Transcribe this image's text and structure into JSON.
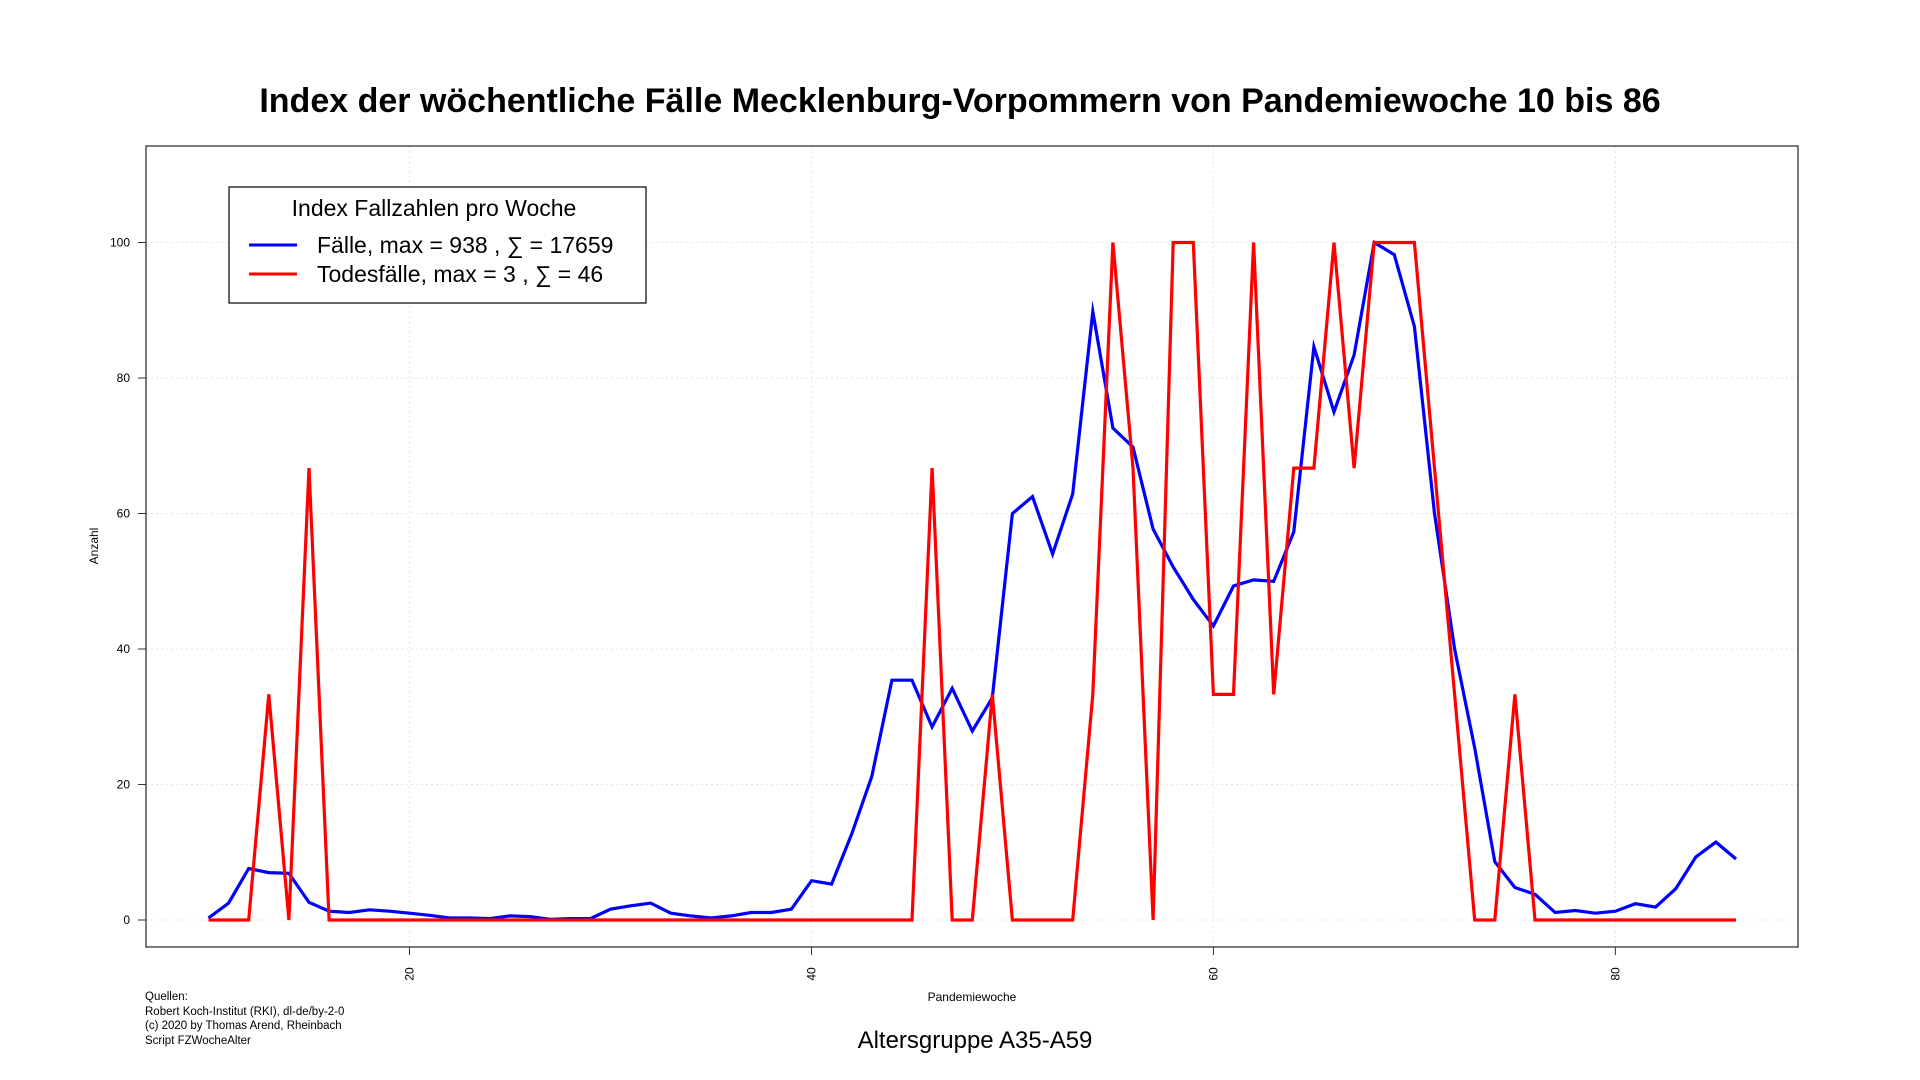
{
  "chart_data": {
    "type": "line",
    "title": "Index der wöchentliche Fälle Mecklenburg-Vorpommern von Pandemiewoche 10 bis 86",
    "xlabel": "Pandemiewoche",
    "ylabel": "Anzahl",
    "subtitle": "Altersgruppe A35-A59",
    "xlim": [
      10,
      86
    ],
    "ylim": [
      0,
      100
    ],
    "x_ticks": [
      "20",
      "40",
      "60",
      "80"
    ],
    "y_ticks": [
      "0",
      "20",
      "40",
      "60",
      "80",
      "100"
    ],
    "grid": true,
    "legend_position": "top-left",
    "legend": {
      "title": "Index Fallzahlen pro Woche",
      "entries": [
        {
          "label": "Fälle, max = 938 ,  ∑  = 17659",
          "color": "#0000ff"
        },
        {
          "label": "Todesfälle, max = 3 ,  ∑  = 46",
          "color": "#ff0000"
        }
      ]
    },
    "x": [
      10,
      11,
      12,
      13,
      14,
      15,
      16,
      17,
      18,
      19,
      20,
      21,
      22,
      23,
      24,
      25,
      26,
      27,
      28,
      29,
      30,
      31,
      32,
      33,
      34,
      35,
      36,
      37,
      38,
      39,
      40,
      41,
      42,
      43,
      44,
      45,
      46,
      47,
      48,
      49,
      50,
      51,
      52,
      53,
      54,
      55,
      56,
      57,
      58,
      59,
      60,
      61,
      62,
      63,
      64,
      65,
      66,
      67,
      68,
      69,
      70,
      71,
      72,
      73,
      74,
      75,
      76,
      77,
      78,
      79,
      80,
      81,
      82,
      83,
      84,
      85,
      86
    ],
    "series": [
      {
        "name": "Fälle, max = 938 ,  ∑  = 17659",
        "color": "#0000ff",
        "values": [
          0.3,
          2.5,
          7.6,
          7.0,
          6.9,
          2.6,
          1.3,
          1.1,
          1.5,
          1.3,
          1.0,
          0.7,
          0.3,
          0.3,
          0.2,
          0.6,
          0.5,
          0.1,
          0.2,
          0.2,
          1.6,
          2.1,
          2.5,
          1.0,
          0.6,
          0.3,
          0.6,
          1.1,
          1.1,
          1.6,
          5.8,
          5.3,
          12.7,
          21.2,
          35.4,
          35.4,
          28.5,
          34.2,
          27.9,
          32.8,
          60.0,
          62.5,
          54.0,
          62.9,
          89.8,
          72.6,
          69.8,
          57.7,
          52.1,
          47.3,
          43.4,
          49.3,
          50.2,
          50.0,
          57.3,
          84.6,
          75.0,
          83.4,
          100.0,
          98.2,
          87.6,
          60.0,
          40.0,
          25.4,
          8.6,
          4.8,
          3.8,
          1.1,
          1.4,
          1.0,
          1.3,
          2.4,
          1.9,
          4.6,
          9.3,
          11.5,
          9.0
        ]
      },
      {
        "name": "Todesfälle, max = 3 ,  ∑  = 46",
        "color": "#ff0000",
        "values": [
          0,
          0,
          0,
          33.3,
          0,
          66.7,
          0,
          0,
          0,
          0,
          0,
          0,
          0,
          0,
          0,
          0,
          0,
          0,
          0,
          0,
          0,
          0,
          0,
          0,
          0,
          0,
          0,
          0,
          0,
          0,
          0,
          0,
          0,
          0,
          0,
          0,
          66.7,
          0,
          0,
          33.3,
          0,
          0,
          0,
          0,
          33.3,
          100,
          66.7,
          0,
          100,
          100,
          33.3,
          33.3,
          100,
          33.3,
          66.7,
          66.7,
          100,
          66.7,
          100,
          100,
          100,
          66.7,
          33.3,
          0,
          0,
          33.3,
          0,
          0,
          0,
          0,
          0,
          0,
          0,
          0,
          0,
          0,
          0
        ]
      }
    ]
  },
  "source_lines": [
    "Quellen:",
    "Robert Koch-Institut (RKI), dl-de/by-2-0",
    "(c) 2020 by Thomas Arend, Rheinbach",
    "Script FZWocheAlter"
  ]
}
